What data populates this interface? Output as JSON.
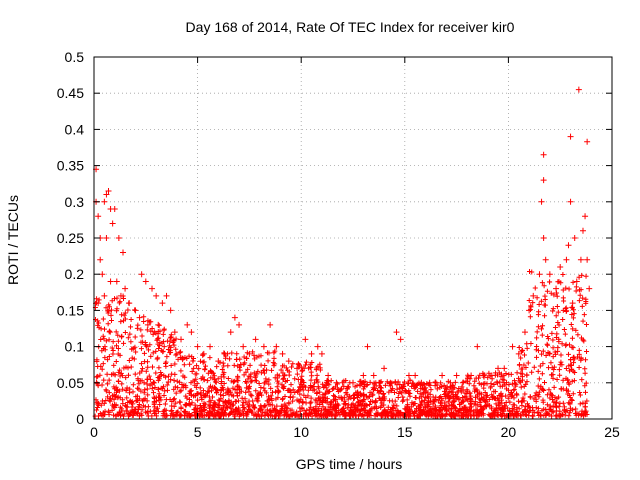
{
  "chart_data": {
    "type": "scatter",
    "title": "Day 168 of 2014, Rate Of TEC Index for receiver kir0",
    "xlabel": "GPS time / hours",
    "ylabel": "ROTI / TECUs",
    "xlim": [
      0,
      25
    ],
    "ylim": [
      0,
      0.5
    ],
    "xticks": [
      0,
      5,
      10,
      15,
      20,
      25
    ],
    "xtick_labels": [
      "0",
      "5",
      "10",
      "15",
      "20",
      "25"
    ],
    "yticks": [
      0,
      0.05,
      0.1,
      0.15,
      0.2,
      0.25,
      0.3,
      0.35,
      0.4,
      0.45,
      0.5
    ],
    "ytick_labels": [
      "0",
      "0.05",
      "0.1",
      "0.15",
      "0.2",
      "0.25",
      "0.3",
      "0.35",
      "0.4",
      "0.45",
      "0.5"
    ],
    "grid": true,
    "marker": "+",
    "color": "#ff0000",
    "series": [
      {
        "name": "ROTI",
        "points": [
          [
            0.1,
            0.345
          ],
          [
            0.1,
            0.3
          ],
          [
            0.2,
            0.28
          ],
          [
            0.3,
            0.25
          ],
          [
            0.3,
            0.22
          ],
          [
            0.5,
            0.3
          ],
          [
            0.6,
            0.31
          ],
          [
            0.7,
            0.315
          ],
          [
            0.8,
            0.29
          ],
          [
            1.0,
            0.29
          ],
          [
            0.9,
            0.27
          ],
          [
            0.6,
            0.25
          ],
          [
            1.2,
            0.25
          ],
          [
            1.4,
            0.23
          ],
          [
            0.4,
            0.2
          ],
          [
            0.8,
            0.19
          ],
          [
            1.1,
            0.19
          ],
          [
            1.5,
            0.18
          ],
          [
            0.2,
            0.16
          ],
          [
            0.5,
            0.17
          ],
          [
            1.3,
            0.17
          ],
          [
            1.7,
            0.16
          ],
          [
            2.0,
            0.15
          ],
          [
            2.3,
            0.2
          ],
          [
            2.5,
            0.19
          ],
          [
            2.8,
            0.18
          ],
          [
            3.0,
            0.17
          ],
          [
            3.3,
            0.16
          ],
          [
            3.5,
            0.17
          ],
          [
            3.7,
            0.15
          ],
          [
            2.2,
            0.14
          ],
          [
            2.6,
            0.13
          ],
          [
            3.1,
            0.13
          ],
          [
            3.9,
            0.12
          ],
          [
            4.2,
            0.11
          ],
          [
            4.5,
            0.13
          ],
          [
            4.7,
            0.12
          ],
          [
            5.0,
            0.1
          ],
          [
            5.3,
            0.09
          ],
          [
            5.6,
            0.1
          ],
          [
            6.0,
            0.08
          ],
          [
            6.3,
            0.09
          ],
          [
            6.6,
            0.12
          ],
          [
            6.8,
            0.14
          ],
          [
            7.0,
            0.13
          ],
          [
            7.2,
            0.1
          ],
          [
            7.5,
            0.09
          ],
          [
            7.8,
            0.11
          ],
          [
            8.2,
            0.1
          ],
          [
            8.5,
            0.13
          ],
          [
            8.8,
            0.1
          ],
          [
            9.1,
            0.09
          ],
          [
            9.4,
            0.08
          ],
          [
            9.8,
            0.07
          ],
          [
            10.2,
            0.11
          ],
          [
            10.5,
            0.09
          ],
          [
            10.8,
            0.1
          ],
          [
            11.0,
            0.09
          ],
          [
            11.3,
            0.06
          ],
          [
            11.7,
            0.05
          ],
          [
            12.0,
            0.05
          ],
          [
            12.5,
            0.05
          ],
          [
            13.0,
            0.06
          ],
          [
            13.2,
            0.1
          ],
          [
            13.5,
            0.06
          ],
          [
            13.8,
            0.05
          ],
          [
            14.0,
            0.07
          ],
          [
            14.3,
            0.05
          ],
          [
            14.6,
            0.12
          ],
          [
            14.8,
            0.11
          ],
          [
            15.2,
            0.06
          ],
          [
            15.5,
            0.06
          ],
          [
            15.8,
            0.05
          ],
          [
            16.2,
            0.05
          ],
          [
            16.5,
            0.05
          ],
          [
            16.8,
            0.06
          ],
          [
            17.2,
            0.05
          ],
          [
            17.5,
            0.06
          ],
          [
            17.8,
            0.05
          ],
          [
            18.2,
            0.06
          ],
          [
            18.5,
            0.1
          ],
          [
            18.8,
            0.06
          ],
          [
            19.2,
            0.06
          ],
          [
            19.5,
            0.07
          ],
          [
            19.8,
            0.07
          ],
          [
            20.2,
            0.1
          ],
          [
            20.5,
            0.09
          ],
          [
            20.8,
            0.12
          ],
          [
            21.0,
            0.15
          ],
          [
            21.2,
            0.17
          ],
          [
            21.5,
            0.2
          ],
          [
            21.7,
            0.25
          ],
          [
            21.8,
            0.22
          ],
          [
            21.6,
            0.3
          ],
          [
            21.7,
            0.33
          ],
          [
            21.7,
            0.365
          ],
          [
            22.0,
            0.2
          ],
          [
            22.3,
            0.18
          ],
          [
            22.5,
            0.21
          ],
          [
            22.8,
            0.22
          ],
          [
            22.9,
            0.24
          ],
          [
            23.0,
            0.3
          ],
          [
            23.0,
            0.39
          ],
          [
            23.2,
            0.25
          ],
          [
            23.4,
            0.455
          ],
          [
            23.5,
            0.22
          ],
          [
            23.6,
            0.26
          ],
          [
            23.7,
            0.28
          ],
          [
            23.8,
            0.383
          ],
          [
            23.8,
            0.22
          ],
          [
            23.9,
            0.18
          ],
          [
            23.3,
            0.19
          ],
          [
            23.1,
            0.16
          ]
        ]
      }
    ]
  }
}
